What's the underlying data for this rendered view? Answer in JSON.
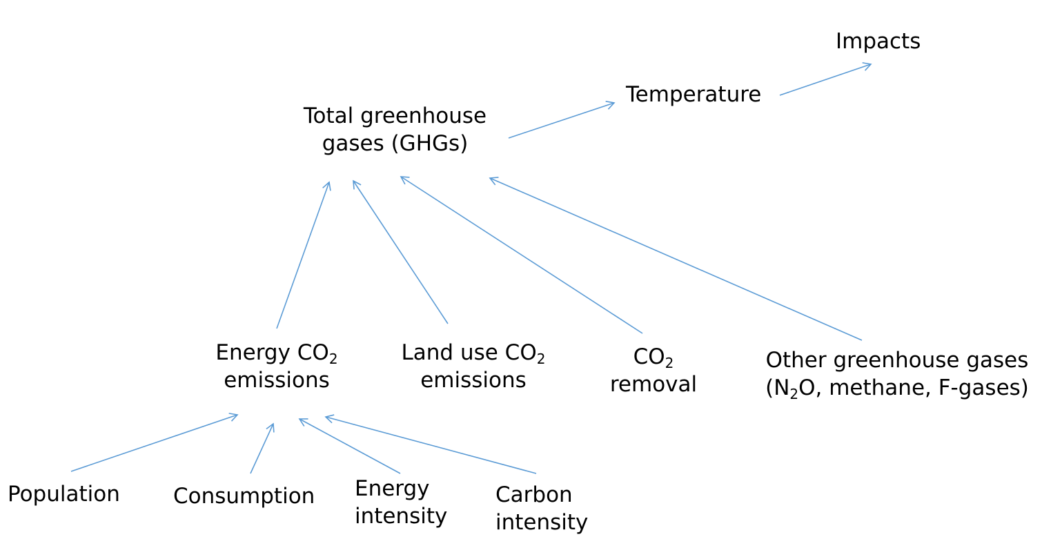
{
  "colors": {
    "arrow": "#5b9bd5",
    "text": "#000000",
    "background": "#ffffff"
  },
  "nodes": {
    "impacts": {
      "line1": "Impacts"
    },
    "temperature": {
      "line1": "Temperature"
    },
    "total_ghg": {
      "line1": "Total greenhouse",
      "line2": "gases (GHGs)"
    },
    "energy_co2": {
      "line1_prefix": "Energy CO",
      "line1_sub": "2",
      "line2": "emissions"
    },
    "land_use_co2": {
      "line1_prefix": "Land use CO",
      "line1_sub": "2",
      "line2": "emissions"
    },
    "co2_removal": {
      "line1_prefix": "CO",
      "line1_sub": "2",
      "line2": "removal"
    },
    "other_ghg": {
      "line1": "Other greenhouse gases",
      "line2_prefix": "(N",
      "line2_sub": "2",
      "line2_suffix": "O, methane, F-gases)"
    },
    "population": {
      "line1": "Population"
    },
    "consumption": {
      "line1": "Consumption"
    },
    "energy_intensity": {
      "line1": "Energy",
      "line2": "intensity"
    },
    "carbon_intensity": {
      "line1": "Carbon",
      "line2": "intensity"
    }
  }
}
